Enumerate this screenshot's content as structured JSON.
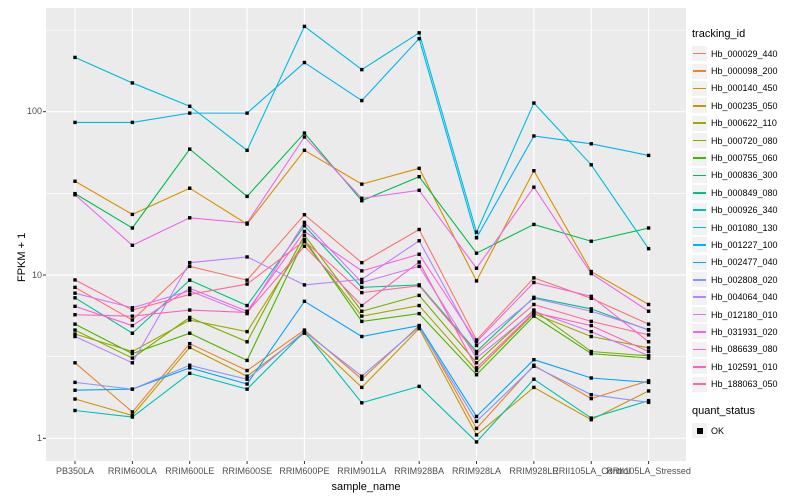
{
  "figure": {
    "y_axis_title": "FPKM + 1",
    "x_axis_title": "sample_name"
  },
  "legend": {
    "color_title": "tracking_id",
    "shape_title": "quant_status",
    "shape_items": [
      {
        "label": "OK"
      }
    ]
  },
  "chart_data": {
    "type": "line",
    "title": "",
    "xlabel": "sample_name",
    "ylabel": "FPKM + 1",
    "yscale": "log10",
    "ylim": [
      0.73,
      430
    ],
    "y_major_ticks": [
      1,
      10,
      100
    ],
    "y_major_tick_labels": [
      "1",
      "10",
      "100"
    ],
    "y_minor_ticks": [
      3.162,
      31.62,
      316.2
    ],
    "grid": "on",
    "legend_position": "right",
    "panel_bg": "#EBEBEB",
    "grid_color": "#FFFFFF",
    "point_color": "#000000",
    "point_shape": "square",
    "quant_status_value": "OK",
    "x_categories": [
      "PB350LA",
      "RRIM600LA",
      "RRIM600LE",
      "RRIM600SE",
      "RRIM600PE",
      "RRIM901LA",
      "RRIM928BA",
      "RRIM928LA",
      "RRIM928LE",
      "RRII105LA_Control",
      "RRII105LA_Stressed"
    ],
    "series": [
      {
        "name": "Hb_000029_440",
        "color": "#F8766D",
        "values": [
          8.4,
          5.3,
          11.3,
          9.3,
          23.4,
          11.9,
          19.0,
          4.0,
          9.6,
          7.2,
          5.0
        ]
      },
      {
        "name": "Hb_000098_200",
        "color": "#EA8331",
        "values": [
          2.9,
          1.45,
          3.8,
          2.6,
          4.6,
          2.3,
          4.9,
          1.15,
          2.8,
          1.75,
          2.25
        ]
      },
      {
        "name": "Hb_000140_450",
        "color": "#D89000",
        "values": [
          37.5,
          23.5,
          34.0,
          20.5,
          58.0,
          36.0,
          45.0,
          9.2,
          43.5,
          10.5,
          6.6
        ]
      },
      {
        "name": "Hb_000235_050",
        "color": "#C09B00",
        "values": [
          1.74,
          1.38,
          3.6,
          2.4,
          4.4,
          2.05,
          4.7,
          1.05,
          2.05,
          1.3,
          1.95
        ]
      },
      {
        "name": "Hb_000622_110",
        "color": "#A3A500",
        "values": [
          4.35,
          3.4,
          5.3,
          4.5,
          16.0,
          5.6,
          6.5,
          2.6,
          5.8,
          4.2,
          3.58
        ]
      },
      {
        "name": "Hb_000720_080",
        "color": "#7CAE00",
        "values": [
          4.6,
          3.1,
          5.5,
          3.9,
          17.5,
          6.0,
          7.5,
          2.9,
          6.1,
          3.4,
          3.2
        ]
      },
      {
        "name": "Hb_000755_060",
        "color": "#49B500",
        "values": [
          5.0,
          3.3,
          4.4,
          3.0,
          16.5,
          5.2,
          5.8,
          2.45,
          5.6,
          3.3,
          3.1
        ]
      },
      {
        "name": "Hb_000836_300",
        "color": "#00BB4E",
        "values": [
          31.5,
          19.4,
          59.0,
          30.3,
          74.0,
          28.5,
          40.0,
          13.6,
          20.4,
          16.1,
          19.4
        ]
      },
      {
        "name": "Hb_000849_080",
        "color": "#00C087",
        "values": [
          7.25,
          4.4,
          9.3,
          6.5,
          20.0,
          8.4,
          8.7,
          3.4,
          7.3,
          6.2,
          4.6
        ]
      },
      {
        "name": "Hb_000926_340",
        "color": "#00C0B2",
        "values": [
          1.48,
          1.35,
          2.5,
          2.0,
          4.5,
          1.65,
          2.08,
          0.95,
          2.3,
          1.33,
          1.7
        ]
      },
      {
        "name": "Hb_001080_130",
        "color": "#00BCD8",
        "values": [
          215,
          150,
          108,
          58,
          333,
          181,
          304,
          18.3,
          113,
          47.3,
          14.5
        ]
      },
      {
        "name": "Hb_001227_100",
        "color": "#00B3F2",
        "values": [
          86,
          86,
          98,
          98,
          200,
          117,
          280,
          16.9,
          71,
          63.6,
          54
        ]
      },
      {
        "name": "Hb_002477_040",
        "color": "#00A5FF",
        "values": [
          1.97,
          2.0,
          2.7,
          2.15,
          6.9,
          4.2,
          4.9,
          1.36,
          3.03,
          2.34,
          2.2
        ]
      },
      {
        "name": "Hb_002808_020",
        "color": "#8B93FF",
        "values": [
          2.2,
          2.0,
          2.8,
          2.3,
          4.5,
          2.4,
          4.8,
          1.27,
          2.76,
          1.85,
          1.66
        ]
      },
      {
        "name": "Hb_004064_040",
        "color": "#B982FF",
        "values": [
          4.2,
          2.9,
          11.9,
          12.9,
          8.7,
          9.4,
          16.2,
          3.7,
          7.2,
          6.0,
          4.63
        ]
      },
      {
        "name": "Hb_012180_010",
        "color": "#D575FE",
        "values": [
          7.74,
          6.3,
          8.0,
          5.8,
          21.0,
          9.0,
          11.3,
          3.1,
          6.0,
          4.5,
          3.2
        ]
      },
      {
        "name": "Hb_031931_020",
        "color": "#EB68EC",
        "values": [
          31.0,
          15.2,
          22.4,
          20.8,
          70.0,
          29.5,
          33.0,
          11.0,
          34.5,
          10.2,
          6.0
        ]
      },
      {
        "name": "Hb_086639_080",
        "color": "#F962DD",
        "values": [
          6.43,
          4.9,
          8.3,
          6.0,
          18.5,
          10.6,
          13.4,
          3.9,
          9.0,
          7.4,
          3.9
        ]
      },
      {
        "name": "Hb_102591_010",
        "color": "#FF61B7",
        "values": [
          5.71,
          5.6,
          6.1,
          5.9,
          15.0,
          6.5,
          12.0,
          2.7,
          5.9,
          4.9,
          3.4
        ]
      },
      {
        "name": "Hb_188063_050",
        "color": "#FF6B94",
        "values": [
          9.33,
          6.1,
          7.6,
          8.8,
          16.2,
          7.8,
          8.6,
          3.3,
          6.6,
          5.2,
          4.3
        ]
      }
    ]
  }
}
